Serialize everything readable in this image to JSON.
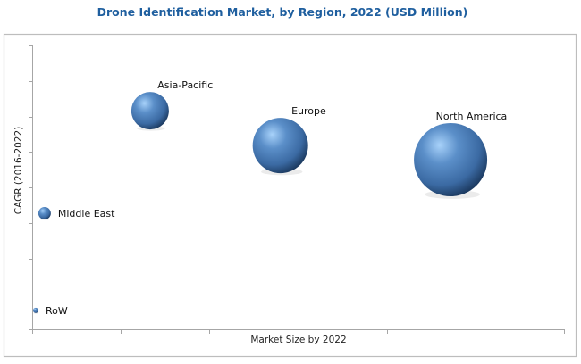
{
  "chart_data": {
    "type": "scatter",
    "subtype": "bubble",
    "title": "Drone Identification Market, by Region, 2022 (USD Million)",
    "xlabel": "Market Size by 2022",
    "ylabel": "CAGR (2016-2022)",
    "xlim": [
      0,
      6
    ],
    "ylim": [
      0,
      8
    ],
    "x_tick_count": 6,
    "y_tick_count": 8,
    "grid": false,
    "legend": "none",
    "bubble_color": "#3d6fa8",
    "bubble_highlight": "#9cc9f5",
    "bubble_shadow": "#1c3a60",
    "title_color": "#1f5f9f",
    "series": [
      {
        "name": "Asia-Pacific",
        "x": 1.33,
        "y": 6.16,
        "size": 441
      },
      {
        "name": "Europe",
        "x": 2.8,
        "y": 5.18,
        "size": 961
      },
      {
        "name": "North America",
        "x": 4.72,
        "y": 4.78,
        "size": 1681
      },
      {
        "name": "Middle East",
        "x": 0.14,
        "y": 3.27,
        "size": 49
      },
      {
        "name": "RoW",
        "x": 0.04,
        "y": 0.53,
        "size": 9
      }
    ]
  }
}
